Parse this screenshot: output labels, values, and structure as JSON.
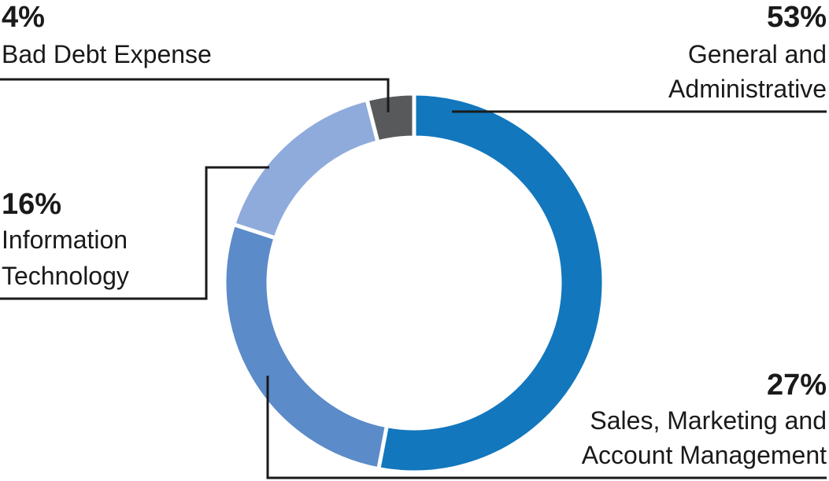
{
  "chart_data": {
    "type": "pie",
    "style": "donut",
    "title": "",
    "slices": [
      {
        "percent_label": "53%",
        "label_lines": [
          "General and",
          "Administrative"
        ],
        "value": 53,
        "color": "#1277bd"
      },
      {
        "percent_label": "27%",
        "label_lines": [
          "Sales, Marketing and",
          "Account Management"
        ],
        "value": 27,
        "color": "#5b8bc8"
      },
      {
        "percent_label": "16%",
        "label_lines": [
          "Information",
          "Technology"
        ],
        "value": 16,
        "color": "#8fabdc"
      },
      {
        "percent_label": "4%",
        "label_lines": [
          "Bad Debt Expense"
        ],
        "value": 4,
        "color": "#58595b"
      }
    ]
  }
}
